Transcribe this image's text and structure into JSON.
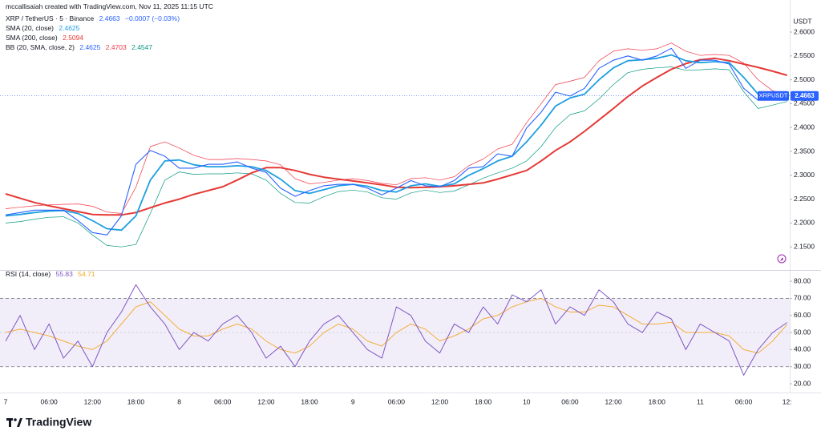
{
  "header": {
    "attribution": "mccallisaiah created with TradingView.com, Nov 11, 2025 11:15 UTC"
  },
  "chart_data": [
    {
      "type": "line",
      "title": "XRP / TetherUS · 5 · Binance",
      "change": "−0.0007 (−0.03%)",
      "currency": "USDT",
      "symbol_tag": "XRPUSDT",
      "bb_label": "BB (20, SMA, close, 2)",
      "ylim": [
        2.105,
        2.642
      ],
      "yticks": [
        {
          "value": 2.15,
          "label": "2.1500"
        },
        {
          "value": 2.2,
          "label": "2.2000"
        },
        {
          "value": 2.25,
          "label": "2.2500"
        },
        {
          "value": 2.3,
          "label": "2.3000"
        },
        {
          "value": 2.35,
          "label": "2.3500"
        },
        {
          "value": 2.4,
          "label": "2.4000"
        },
        {
          "value": 2.45,
          "label": "2.4500"
        },
        {
          "value": 2.5,
          "label": "2.5000"
        },
        {
          "value": 2.55,
          "label": "2.5500"
        },
        {
          "value": 2.6,
          "label": "2.6000"
        }
      ],
      "grid": false,
      "series": [
        {
          "color": "#2962ff",
          "values": [
            2.217,
            2.222,
            2.227,
            2.227,
            2.227,
            2.205,
            2.18,
            2.175,
            2.215,
            2.323,
            2.352,
            2.34,
            2.315,
            2.315,
            2.323,
            2.323,
            2.328,
            2.315,
            2.306,
            2.273,
            2.256,
            2.268,
            2.278,
            2.281,
            2.281,
            2.273,
            2.259,
            2.273,
            2.289,
            2.278,
            2.276,
            2.289,
            2.315,
            2.318,
            2.345,
            2.34,
            2.399,
            2.432,
            2.474,
            2.466,
            2.482,
            2.524,
            2.541,
            2.55,
            2.541,
            2.55,
            2.566,
            2.524,
            2.541,
            2.541,
            2.533,
            2.482,
            2.457,
            2.462,
            2.4663
          ]
        },
        {
          "name": "SMA (20, close)",
          "color": "#1e9fe0",
          "values": [
            2.215,
            2.218,
            2.222,
            2.225,
            2.226,
            2.22,
            2.205,
            2.188,
            2.185,
            2.215,
            2.29,
            2.33,
            2.332,
            2.322,
            2.318,
            2.318,
            2.32,
            2.318,
            2.31,
            2.292,
            2.268,
            2.262,
            2.27,
            2.278,
            2.281,
            2.277,
            2.268,
            2.265,
            2.278,
            2.282,
            2.277,
            2.282,
            2.3,
            2.314,
            2.33,
            2.34,
            2.37,
            2.405,
            2.445,
            2.462,
            2.47,
            2.5,
            2.525,
            2.54,
            2.542,
            2.545,
            2.552,
            2.54,
            2.536,
            2.538,
            2.536,
            2.505,
            2.47,
            2.462,
            2.4625
          ]
        },
        {
          "name": "SMA (200, close)",
          "color": "#e53935",
          "values": [
            2.261,
            2.252,
            2.243,
            2.236,
            2.23,
            2.224,
            2.218,
            2.217,
            2.217,
            2.222,
            2.232,
            2.242,
            2.25,
            2.26,
            2.268,
            2.276,
            2.29,
            2.305,
            2.316,
            2.316,
            2.31,
            2.302,
            2.296,
            2.292,
            2.288,
            2.284,
            2.28,
            2.275,
            2.274,
            2.275,
            2.276,
            2.278,
            2.281,
            2.284,
            2.292,
            2.301,
            2.31,
            2.33,
            2.352,
            2.37,
            2.392,
            2.416,
            2.44,
            2.465,
            2.487,
            2.505,
            2.522,
            2.534,
            2.542,
            2.545,
            2.54,
            2.533,
            2.526,
            2.518,
            2.5094
          ]
        },
        {
          "color": "#f23645",
          "values": [
            2.23,
            2.233,
            2.236,
            2.238,
            2.239,
            2.24,
            2.235,
            2.223,
            2.22,
            2.275,
            2.36,
            2.37,
            2.357,
            2.342,
            2.333,
            2.333,
            2.335,
            2.333,
            2.33,
            2.322,
            2.293,
            2.282,
            2.285,
            2.29,
            2.293,
            2.289,
            2.283,
            2.28,
            2.293,
            2.295,
            2.29,
            2.297,
            2.32,
            2.334,
            2.355,
            2.365,
            2.41,
            2.45,
            2.49,
            2.497,
            2.505,
            2.54,
            2.56,
            2.565,
            2.562,
            2.565,
            2.577,
            2.56,
            2.551,
            2.553,
            2.551,
            2.535,
            2.5,
            2.477,
            2.4703
          ]
        },
        {
          "color": "#089981",
          "values": [
            2.2,
            2.203,
            2.208,
            2.212,
            2.213,
            2.2,
            2.175,
            2.153,
            2.15,
            2.155,
            2.22,
            2.29,
            2.307,
            2.302,
            2.303,
            2.303,
            2.305,
            2.303,
            2.29,
            2.262,
            2.243,
            2.242,
            2.255,
            2.266,
            2.269,
            2.265,
            2.253,
            2.25,
            2.263,
            2.269,
            2.264,
            2.267,
            2.28,
            2.294,
            2.305,
            2.315,
            2.33,
            2.36,
            2.4,
            2.427,
            2.435,
            2.46,
            2.49,
            2.515,
            2.522,
            2.525,
            2.527,
            2.52,
            2.521,
            2.523,
            2.521,
            2.475,
            2.44,
            2.447,
            2.4547
          ]
        }
      ]
    },
    {
      "type": "line",
      "categories": [
        "7",
        null,
        null,
        "06:00",
        null,
        null,
        "12:00",
        null,
        null,
        "18:00",
        null,
        null,
        "8",
        null,
        null,
        "06:00",
        null,
        null,
        "12:00",
        null,
        null,
        "18:00",
        null,
        null,
        "9",
        null,
        null,
        "06:00",
        null,
        null,
        "12:00",
        null,
        null,
        "18:00",
        null,
        null,
        "10",
        null,
        null,
        "06:00",
        null,
        null,
        "12:00",
        null,
        null,
        "18:00",
        null,
        null,
        "11",
        null,
        null,
        "06:00",
        null,
        null,
        "12:"
      ],
      "ylim": [
        15.8,
        85.2
      ],
      "yticks": [
        {
          "value": 20,
          "label": "20.00"
        },
        {
          "value": 30,
          "label": "30.00"
        },
        {
          "value": 40,
          "label": "40.00"
        },
        {
          "value": 50,
          "label": "50.00"
        },
        {
          "value": 60,
          "label": "60.00"
        },
        {
          "value": 70,
          "label": "70.00"
        },
        {
          "value": 80,
          "label": "80.00"
        }
      ],
      "band": [
        30,
        70
      ],
      "midline": 50,
      "band_color": "#7e57c2",
      "grid": false,
      "series": [
        {
          "name": "RSI (14, close)",
          "color": "#7e57c2",
          "values": [
            45,
            60,
            40,
            55,
            35,
            45,
            30,
            50,
            62,
            78,
            65,
            55,
            40,
            50,
            45,
            55,
            60,
            50,
            35,
            42,
            30,
            45,
            55,
            60,
            50,
            40,
            35,
            65,
            60,
            45,
            38,
            55,
            50,
            65,
            55,
            72,
            68,
            75,
            55,
            65,
            60,
            75,
            68,
            55,
            50,
            62,
            58,
            40,
            55,
            50,
            45,
            25,
            40,
            50,
            55.83
          ]
        },
        {
          "color": "#f5a623",
          "values": [
            50,
            52,
            50,
            48,
            45,
            42,
            40,
            45,
            55,
            65,
            68,
            60,
            52,
            48,
            48,
            52,
            55,
            52,
            45,
            40,
            38,
            42,
            50,
            55,
            52,
            45,
            42,
            50,
            55,
            52,
            45,
            48,
            52,
            58,
            60,
            65,
            68,
            70,
            65,
            62,
            62,
            66,
            65,
            60,
            55,
            55,
            56,
            50,
            50,
            50,
            48,
            40,
            38,
            45,
            54.71
          ]
        }
      ]
    }
  ],
  "footer": {
    "brand": "TradingView"
  }
}
